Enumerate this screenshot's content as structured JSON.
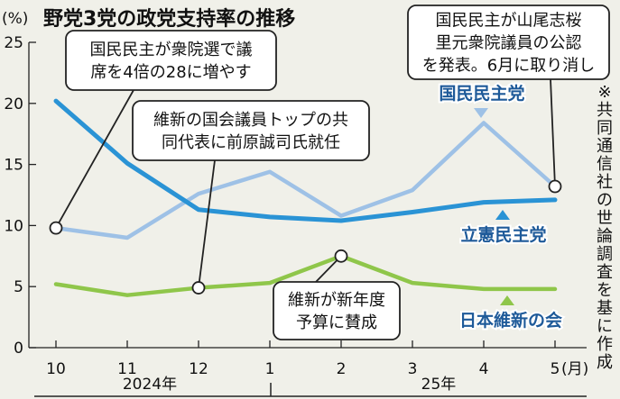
{
  "chart_data": {
    "type": "line",
    "title": "野党3党の政党支持率の推移",
    "yunit": "(%)",
    "xunit": "(月)",
    "ylim": [
      0,
      25
    ],
    "yticks": [
      "0",
      "5",
      "10",
      "15",
      "20",
      "25"
    ],
    "categories": [
      "10",
      "11",
      "12",
      "1",
      "2",
      "3",
      "4",
      "5"
    ],
    "year_labels": [
      "2024年",
      "25年"
    ],
    "grid": false,
    "series": [
      {
        "name": "国民民主党",
        "color": "#9ec1e6",
        "values": [
          9.8,
          9.0,
          12.6,
          14.4,
          10.8,
          12.9,
          18.4,
          13.2
        ]
      },
      {
        "name": "立憲民主党",
        "color": "#2a93d5",
        "values": [
          20.2,
          15.1,
          11.3,
          10.7,
          10.4,
          11.1,
          11.9,
          12.1
        ]
      },
      {
        "name": "日本維新の会",
        "color": "#8fc64a",
        "values": [
          5.2,
          4.3,
          4.9,
          5.3,
          7.5,
          5.3,
          4.8,
          4.8
        ]
      }
    ],
    "annotations": [
      {
        "lines": [
          "国民民主が衆院選で議",
          "席を4倍の28に増やす"
        ],
        "series": 0,
        "point": 0
      },
      {
        "lines": [
          "維新の国会議員トップの共",
          "同代表に前原誠司氏就任"
        ],
        "series": 2,
        "point": 2
      },
      {
        "lines": [
          "維新が新年度",
          "予算に賛成"
        ],
        "series": 2,
        "point": 4
      },
      {
        "lines": [
          "国民民主が山尾志桜",
          "里元衆院議員の公認",
          "を発表。6月に取り消し"
        ],
        "series": 0,
        "point": 7
      }
    ],
    "side_note": "※共同通信社の世論調査を基に作成"
  }
}
